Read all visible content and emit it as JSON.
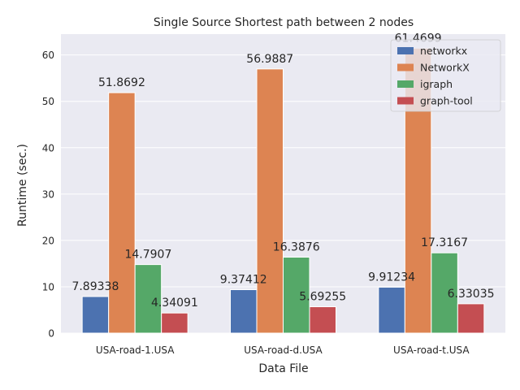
{
  "chart_data": {
    "type": "bar",
    "title": "Single Source Shortest path between 2 nodes",
    "xlabel": "Data File",
    "ylabel": "Runtime (sec.)",
    "categories": [
      "USA-road-1.USA",
      "USA-road-d.USA",
      "USA-road-t.USA"
    ],
    "ylim": [
      0,
      64.5
    ],
    "yticks": [
      0,
      10,
      20,
      30,
      40,
      50,
      60
    ],
    "grid": true,
    "legend_position": "top-right",
    "series": [
      {
        "name": "networkx",
        "color": "#4c72b0",
        "values": [
          7.89338,
          9.37412,
          9.91234
        ],
        "labels": [
          "7.89338",
          "9.37412",
          "9.91234"
        ]
      },
      {
        "name": "NetworkX",
        "color": "#dd8452",
        "values": [
          51.8692,
          56.9887,
          61.4699
        ],
        "labels": [
          "51.8692",
          "56.9887",
          "61.4699"
        ]
      },
      {
        "name": "igraph",
        "color": "#55a868",
        "values": [
          14.7907,
          16.3876,
          17.3167
        ],
        "labels": [
          "14.7907",
          "16.3876",
          "17.3167"
        ]
      },
      {
        "name": "graph-tool",
        "color": "#c44e52",
        "values": [
          4.34091,
          5.69255,
          6.33035
        ],
        "labels": [
          "4.34091",
          "5.69255",
          "6.33035"
        ]
      }
    ]
  },
  "colors": {
    "plot_background": "#eaeaf2",
    "grid": "#ffffff"
  }
}
